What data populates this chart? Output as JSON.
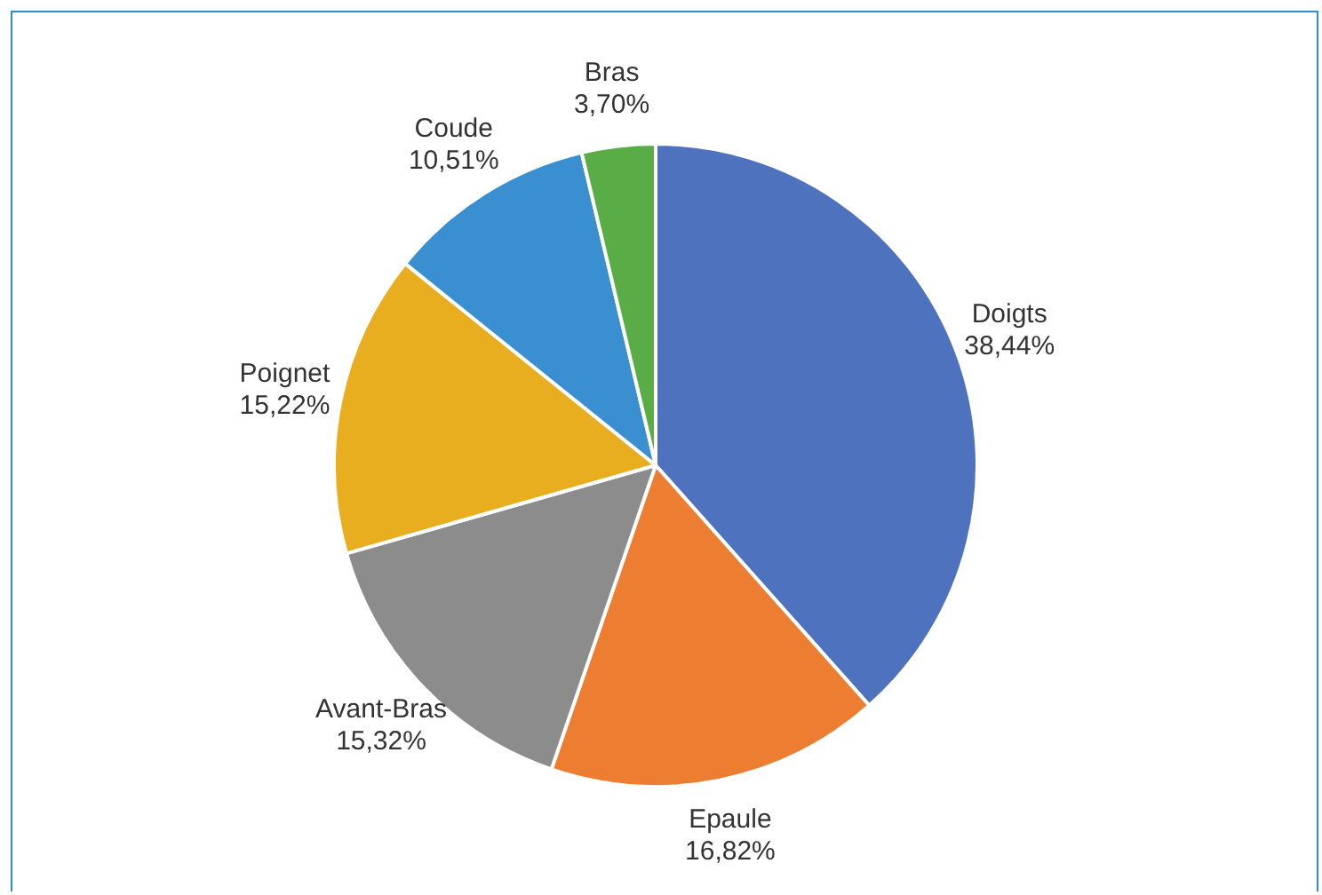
{
  "chart_data": {
    "type": "pie",
    "categories": [
      "Doigts",
      "Epaule",
      "Avant-Bras",
      "Poignet",
      "Coude",
      "Bras"
    ],
    "values": [
      38.44,
      16.82,
      15.32,
      15.22,
      10.51,
      3.7
    ],
    "colors": [
      "#4f72be",
      "#ed7d31",
      "#8c8c8c",
      "#e8ae1f",
      "#3a8fd0",
      "#5aac46"
    ],
    "value_labels": [
      "38,44%",
      "16,82%",
      "15,32%",
      "15,22%",
      "10,51%",
      "3,70%"
    ],
    "legend": false
  }
}
